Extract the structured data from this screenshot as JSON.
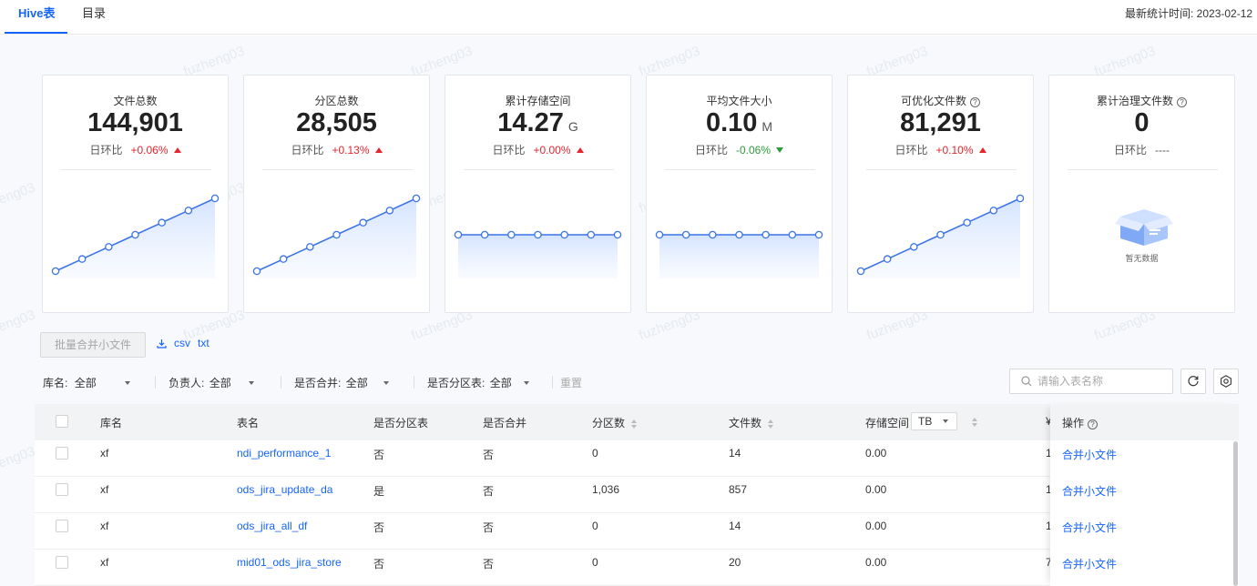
{
  "tabs": [
    {
      "label": "Hive表",
      "active": true
    },
    {
      "label": "目录",
      "active": false
    }
  ],
  "stat_time_label": "最新统计时间: 2023-02-12",
  "cards": [
    {
      "title": "文件总数",
      "value": "144,901",
      "unit": "",
      "change_label": "日环比",
      "change": "+0.06%",
      "trend": "up",
      "help": false,
      "chart": "rising"
    },
    {
      "title": "分区总数",
      "value": "28,505",
      "unit": "",
      "change_label": "日环比",
      "change": "+0.13%",
      "trend": "up",
      "help": false,
      "chart": "rising"
    },
    {
      "title": "累计存储空间",
      "value": "14.27",
      "unit": "G",
      "change_label": "日环比",
      "change": "+0.00%",
      "trend": "up",
      "help": false,
      "chart": "flat"
    },
    {
      "title": "平均文件大小",
      "value": "0.10",
      "unit": "M",
      "change_label": "日环比",
      "change": "-0.06%",
      "trend": "down",
      "help": false,
      "chart": "flat"
    },
    {
      "title": "可优化文件数",
      "value": "81,291",
      "unit": "",
      "change_label": "日环比",
      "change": "+0.10%",
      "trend": "up",
      "help": true,
      "chart": "rising"
    },
    {
      "title": "累计治理文件数",
      "value": "0",
      "unit": "",
      "change_label": "日环比",
      "change": "----",
      "trend": "none",
      "help": true,
      "chart": "empty",
      "empty_text": "暂无数据"
    }
  ],
  "sparkline_series": {
    "rising": [
      1,
      2,
      3,
      4,
      5,
      6,
      7
    ],
    "flat": [
      5,
      5,
      5,
      5,
      5,
      5,
      5
    ]
  },
  "actions": {
    "batch_merge_label": "批量合并小文件",
    "export_csv": "csv",
    "export_txt": "txt"
  },
  "filters": [
    {
      "label": "库名:",
      "value": "全部"
    },
    {
      "label": "负责人:",
      "value": "全部"
    },
    {
      "label": "是否合并:",
      "value": "全部"
    },
    {
      "label": "是否分区表:",
      "value": "全部"
    }
  ],
  "reset_label": "重置",
  "search_placeholder": "请输入表名称",
  "table": {
    "columns": [
      "库名",
      "表名",
      "是否分区表",
      "是否合并",
      "分区数",
      "文件数",
      "存储空间",
      "操作"
    ],
    "storage_unit": "TB",
    "rows": [
      {
        "db": "xf",
        "table": "ndi_performance_1",
        "partitioned": "否",
        "merged": "否",
        "partitions": "0",
        "files": "14",
        "storage": "0.00",
        "extra": "1",
        "action": "合并小文件"
      },
      {
        "db": "xf",
        "table": "ods_jira_update_da",
        "partitioned": "是",
        "merged": "否",
        "partitions": "1,036",
        "files": "857",
        "storage": "0.00",
        "extra": "1",
        "action": "合并小文件"
      },
      {
        "db": "xf",
        "table": "ods_jira_all_df",
        "partitioned": "否",
        "merged": "否",
        "partitions": "0",
        "files": "14",
        "storage": "0.00",
        "extra": "1",
        "action": "合并小文件"
      },
      {
        "db": "xf",
        "table": "mid01_ods_jira_store",
        "partitioned": "否",
        "merged": "否",
        "partitions": "0",
        "files": "20",
        "storage": "0.00",
        "extra": "7",
        "action": "合并小文件"
      }
    ]
  },
  "watermark": "fuzheng03",
  "colors": {
    "accent": "#1664ff",
    "up": "#e5242b",
    "down": "#2a9d3a"
  }
}
